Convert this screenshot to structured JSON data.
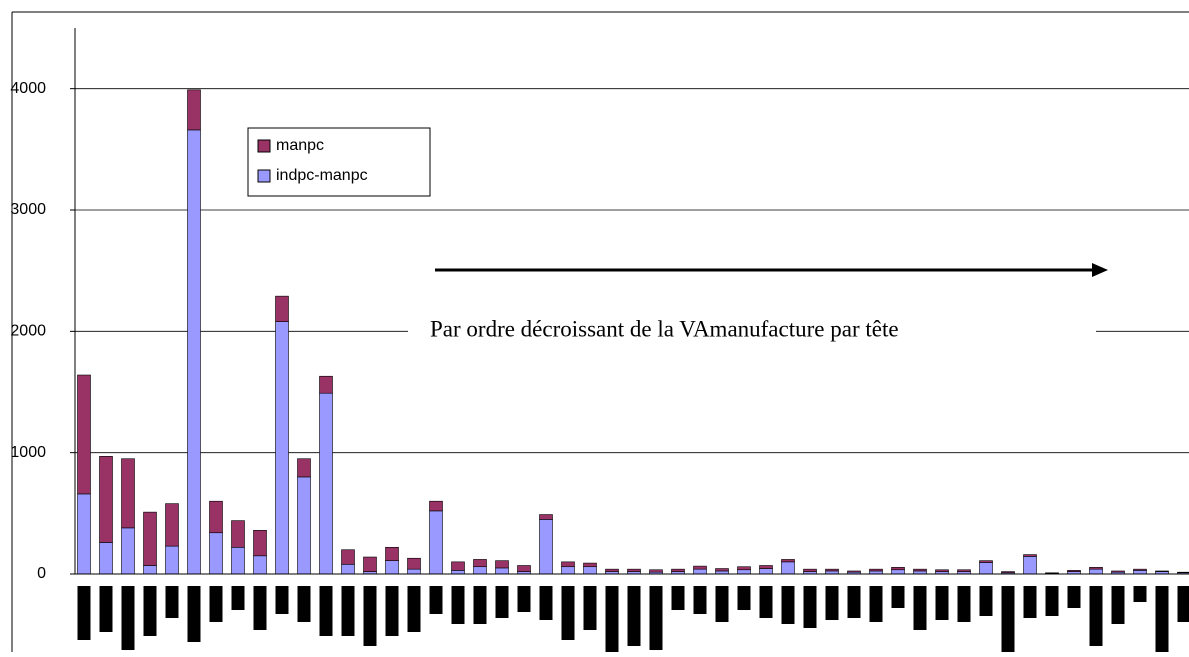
{
  "chart_data": {
    "type": "stacked_bar",
    "annotation": "Par ordre décroissant de la VAmanufacture par tête",
    "categories": [
      null,
      null,
      null,
      null,
      null,
      null,
      null,
      null,
      null,
      null,
      null,
      null,
      null,
      null,
      null,
      null,
      null,
      null,
      null,
      null,
      null,
      null,
      null,
      null,
      null,
      null,
      null,
      null,
      null,
      null,
      null,
      null,
      null,
      null,
      null,
      null,
      null,
      null,
      null,
      null,
      null,
      null,
      null,
      null,
      null,
      null,
      null,
      null,
      null,
      null,
      null
    ],
    "series": [
      {
        "name": "manpc",
        "color": "#993366",
        "values": [
          980,
          710,
          570,
          440,
          350,
          330,
          260,
          220,
          210,
          210,
          150,
          140,
          120,
          120,
          110,
          90,
          80,
          70,
          60,
          60,
          50,
          40,
          40,
          30,
          20,
          20,
          20,
          20,
          25,
          20,
          25,
          25,
          20,
          20,
          15,
          10,
          15,
          20,
          15,
          15,
          15,
          15,
          10,
          15,
          5,
          10,
          15,
          10,
          10,
          5,
          5
        ]
      },
      {
        "name": "indpc-manpc",
        "color": "#9999ff",
        "values": [
          660,
          260,
          380,
          70,
          230,
          3660,
          340,
          220,
          150,
          2080,
          800,
          1490,
          80,
          20,
          110,
          40,
          520,
          30,
          60,
          50,
          20,
          450,
          60,
          60,
          20,
          20,
          15,
          20,
          40,
          25,
          35,
          45,
          100,
          20,
          25,
          15,
          25,
          35,
          25,
          20,
          20,
          95,
          10,
          145,
          5,
          20,
          40,
          15,
          30,
          20,
          10
        ]
      }
    ],
    "ylim": [
      0,
      4500
    ],
    "yticks": [
      0,
      1000,
      2000,
      3000,
      4000
    ],
    "grid": true,
    "legend": "upper-left"
  }
}
